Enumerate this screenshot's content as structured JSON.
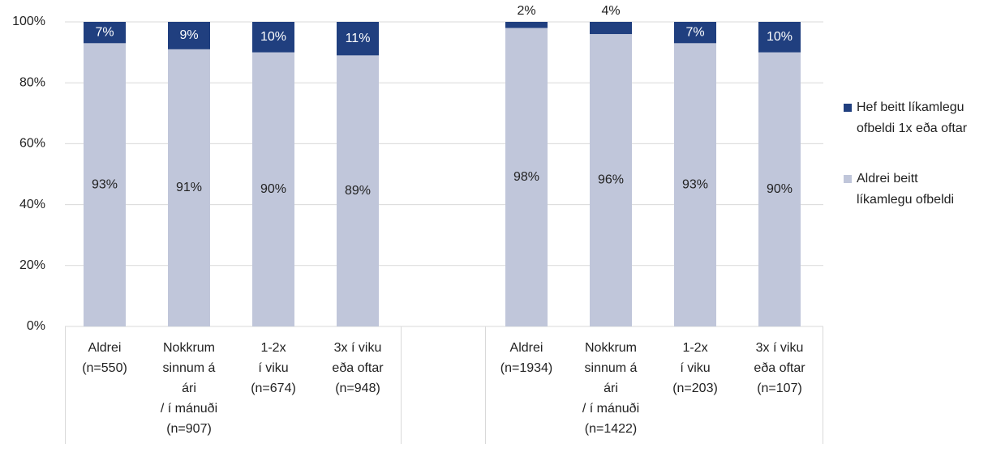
{
  "chart_data": {
    "type": "bar",
    "stacked": true,
    "categories": [
      "Aldrei\n(n=550)",
      "Nokkrum\nsinnum á\nári\n/ í mánuði\n(n=907)",
      "1-2x\ní viku\n(n=674)",
      "3x í viku\neða oftar\n(n=948)",
      null,
      "Aldrei\n(n=1934)",
      "Nokkrum\nsinnum á\nári\n/ í mánuði\n(n=1422)",
      "1-2x\ní viku\n(n=203)",
      "3x í viku\neða oftar\n(n=107)"
    ],
    "series": [
      {
        "name": "Aldrei beitt líkamlegu ofbeldi",
        "color": "#c0c6da",
        "values": [
          93,
          91,
          90,
          89,
          null,
          98,
          96,
          93,
          90
        ],
        "value_labels": [
          "93%",
          "91%",
          "90%",
          "89%",
          null,
          "98%",
          "96%",
          "93%",
          "90%"
        ]
      },
      {
        "name": "Hef beitt líkamlegu ofbeldi 1x eða oftar",
        "color": "#203f7f",
        "values": [
          7,
          9,
          10,
          11,
          null,
          2,
          4,
          7,
          10
        ],
        "value_labels": [
          "7%",
          "9%",
          "10%",
          "11%",
          null,
          "2%",
          "4%",
          "7%",
          "10%"
        ]
      }
    ],
    "ylim": [
      0,
      100
    ],
    "yticks": [
      {
        "value": 0,
        "label": "0%"
      },
      {
        "value": 20,
        "label": "20%"
      },
      {
        "value": 40,
        "label": "40%"
      },
      {
        "value": 60,
        "label": "60%"
      },
      {
        "value": 80,
        "label": "80%"
      },
      {
        "value": 100,
        "label": "100%"
      }
    ],
    "grid": true,
    "legend": "right"
  }
}
